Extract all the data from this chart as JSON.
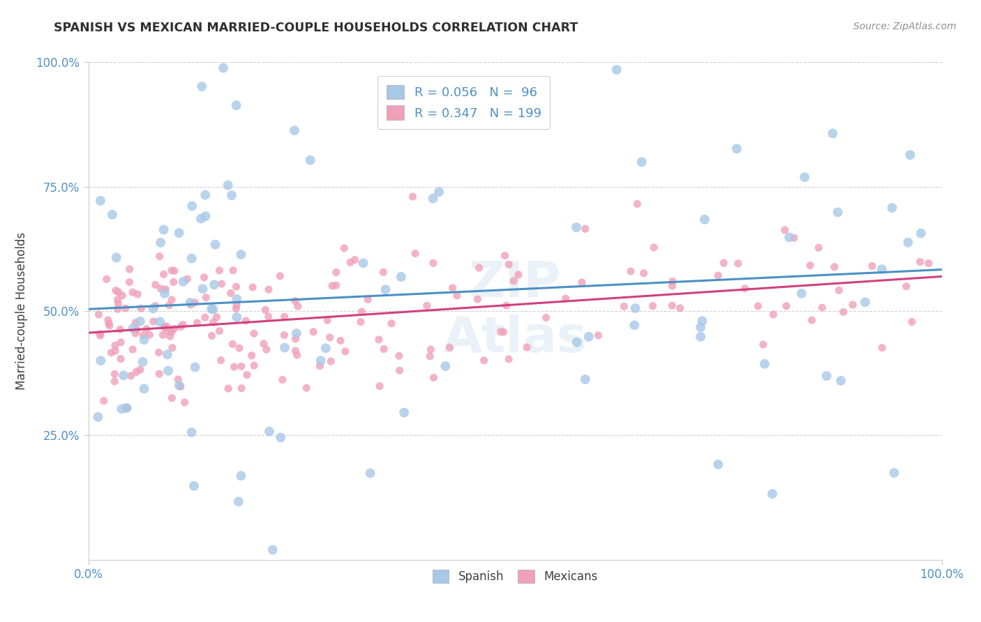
{
  "title": "SPANISH VS MEXICAN MARRIED-COUPLE HOUSEHOLDS CORRELATION CHART",
  "source": "Source: ZipAtlas.com",
  "ylabel": "Married-couple Households",
  "r_spanish": 0.056,
  "n_spanish": 96,
  "r_mexican": 0.347,
  "n_mexican": 199,
  "scatter_color_spanish": "#a8c8e8",
  "scatter_color_mexican": "#f0a0b8",
  "trend_color_spanish": "#4a90c4",
  "trend_color_mexican": "#d04080",
  "background_color": "#ffffff",
  "grid_color": "#d0d0d0",
  "title_color": "#303030",
  "source_color": "#909090",
  "tick_color": "#5090c8",
  "ylabel_color": "#404040",
  "legend_text_color": "#5090c8"
}
